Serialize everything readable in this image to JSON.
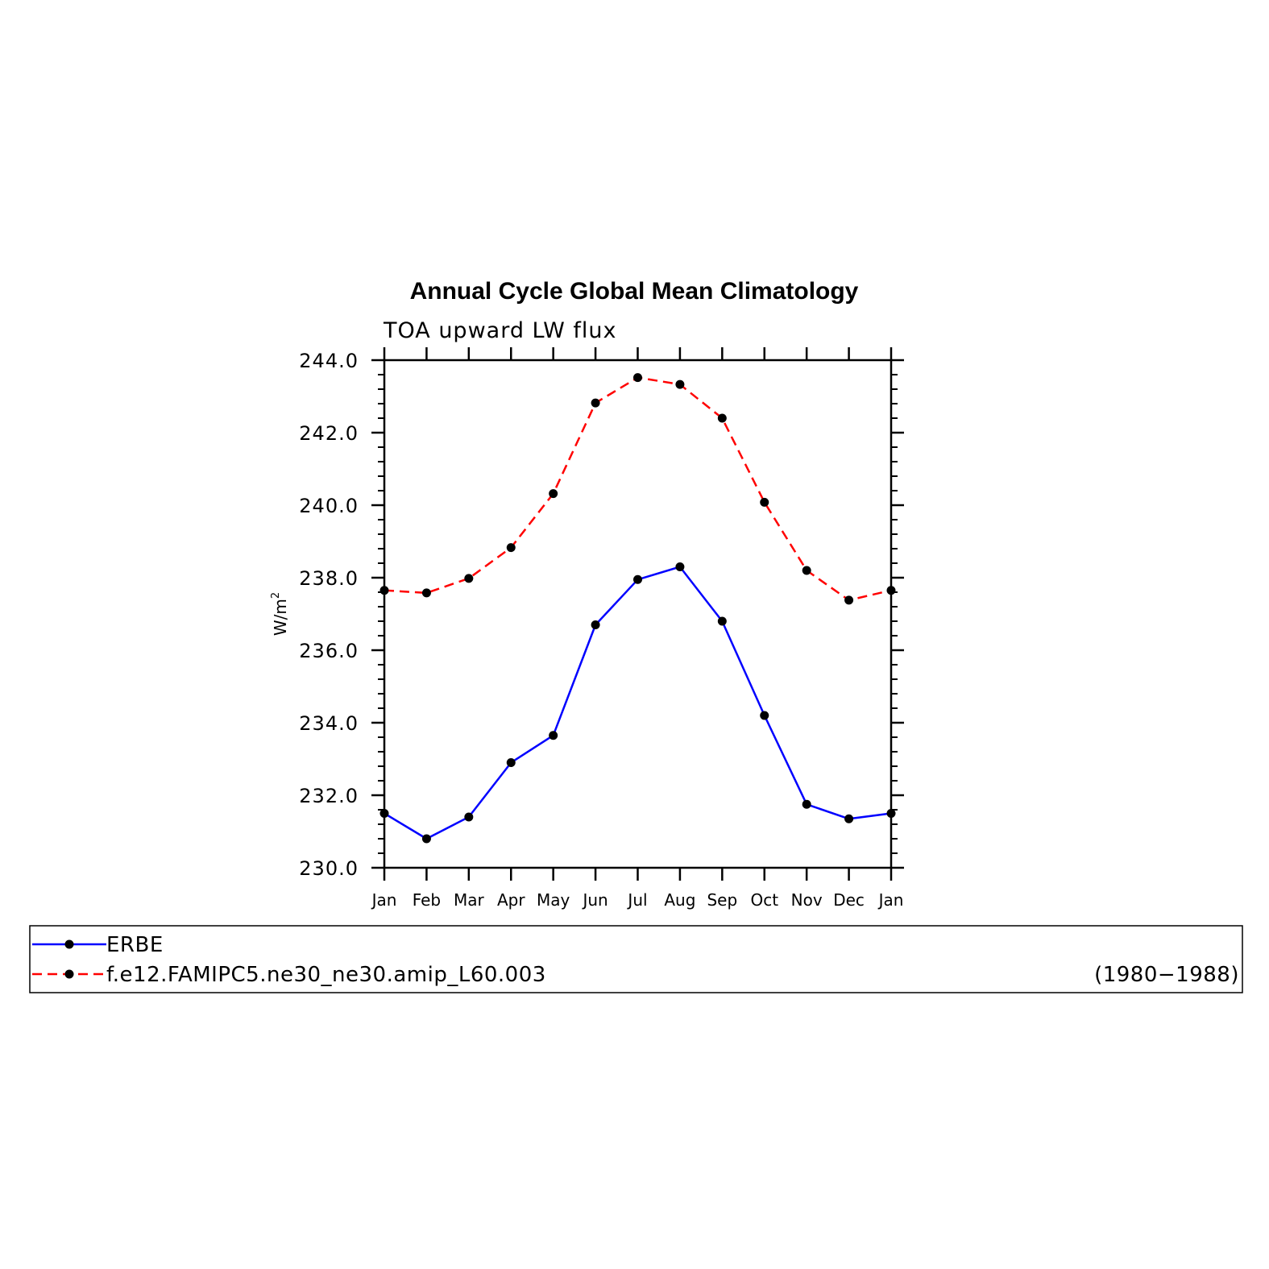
{
  "chart_data": {
    "type": "line",
    "title": "Annual Cycle Global Mean Climatology",
    "subtitle": "TOA upward LW flux",
    "ylabel": "W/m",
    "ylabel_superscript": "2",
    "xlabel": "",
    "categories": [
      "Jan",
      "Feb",
      "Mar",
      "Apr",
      "May",
      "Jun",
      "Jul",
      "Aug",
      "Sep",
      "Oct",
      "Nov",
      "Dec",
      "Jan"
    ],
    "ylim": [
      230.0,
      244.0
    ],
    "yticks": [
      "230.0",
      "232.0",
      "234.0",
      "236.0",
      "238.0",
      "240.0",
      "242.0",
      "244.0"
    ],
    "grid": false,
    "legend_position": "bottom",
    "series": [
      {
        "name": "ERBE",
        "color": "#0000ff",
        "dash": "solid",
        "values": [
          231.5,
          230.8,
          231.4,
          232.9,
          233.65,
          236.7,
          237.95,
          238.3,
          236.8,
          234.2,
          231.75,
          231.35,
          231.5
        ]
      },
      {
        "name": "f.e12.FAMIPC5.ne30_ne30.amip_L60.003",
        "color": "#ff0000",
        "dash": "dashed",
        "values": [
          237.65,
          237.58,
          237.98,
          238.83,
          240.32,
          242.82,
          243.52,
          243.33,
          242.4,
          240.08,
          238.2,
          237.38,
          237.65
        ]
      }
    ],
    "legend_note": "(1980−1988)"
  }
}
